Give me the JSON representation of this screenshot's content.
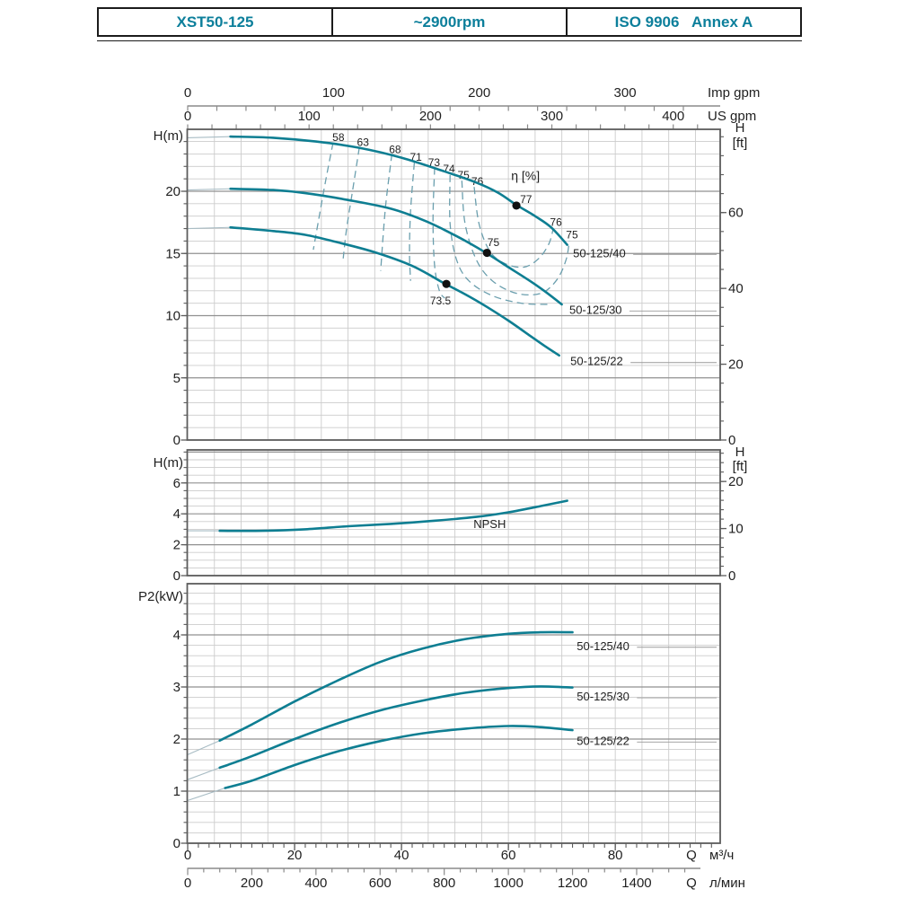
{
  "header": {
    "model": "XST50-125",
    "speed": "~2900rpm",
    "standard": "ISO 9906   Annex A"
  },
  "colors": {
    "header_text": "#0c7f9b",
    "curve": "#0e7e92",
    "curve_faint": "#a8bcc4",
    "contour": "#6b9fae",
    "dot": "#111111",
    "text": "#1f1f1f",
    "grid_minor": "#cccccc",
    "grid_major": "#909090",
    "frame": "#5c5c5c",
    "axis": "#8a8a8a",
    "leader": "#9a9a9a"
  },
  "x_axes": {
    "imp": {
      "unit": "Imp gpm",
      "ticks": [
        0,
        100,
        200,
        300
      ]
    },
    "us": {
      "unit": "US gpm",
      "ticks": [
        0,
        100,
        200,
        300,
        400
      ]
    },
    "m3h": {
      "q": "Q",
      "unit": "м³/ч",
      "ticks": [
        0,
        20,
        40,
        60,
        80
      ]
    },
    "lmin": {
      "q": "Q",
      "unit": "л/мин",
      "ticks": [
        0,
        200,
        400,
        600,
        800,
        1000,
        1200,
        1400
      ]
    }
  },
  "chart_data": [
    {
      "type": "line",
      "name": "head-flow-curves",
      "ylabel": "H(m)",
      "ylabel_right": [
        "H",
        "[ft]"
      ],
      "xlabel": "Q (м³/ч)",
      "xlim": [
        0,
        99.6
      ],
      "ylim": [
        0,
        25
      ],
      "yticks": [
        0,
        5,
        10,
        15,
        20
      ],
      "yticks_right_ft": [
        0,
        20,
        40,
        60
      ],
      "grid": true,
      "series": [
        {
          "name": "50-125/40",
          "label": "50-125/40",
          "label_pos": [
            72.1,
            15.0
          ],
          "points": [
            [
              0,
              24.3
            ],
            [
              8,
              24.4
            ],
            [
              16,
              24.3
            ],
            [
              24,
              24.0
            ],
            [
              32,
              23.5
            ],
            [
              40,
              22.7
            ],
            [
              48,
              21.6
            ],
            [
              54,
              20.7
            ],
            [
              58,
              19.9
            ],
            [
              61.5,
              18.9
            ],
            [
              65,
              18.0
            ],
            [
              68,
              17.1
            ],
            [
              71,
              15.7
            ]
          ]
        },
        {
          "name": "50-125/30",
          "label": "50-125/30",
          "label_pos": [
            71.4,
            10.45
          ],
          "points": [
            [
              0,
              20.1
            ],
            [
              8,
              20.2
            ],
            [
              16,
              20.1
            ],
            [
              22,
              19.85
            ],
            [
              30,
              19.3
            ],
            [
              38,
              18.6
            ],
            [
              44,
              17.7
            ],
            [
              48,
              16.9
            ],
            [
              52,
              16.0
            ],
            [
              56,
              15.0
            ],
            [
              60,
              13.9
            ],
            [
              64,
              12.8
            ],
            [
              67,
              11.9
            ],
            [
              70,
              10.9
            ]
          ]
        },
        {
          "name": "50-125/22",
          "label": "50-125/22",
          "label_pos": [
            71.6,
            6.3
          ],
          "points": [
            [
              0,
              17.0
            ],
            [
              8,
              17.1
            ],
            [
              16,
              16.8
            ],
            [
              22,
              16.5
            ],
            [
              28,
              15.9
            ],
            [
              35,
              15.1
            ],
            [
              42,
              14.0
            ],
            [
              48,
              12.6
            ],
            [
              52,
              11.7
            ],
            [
              56,
              10.7
            ],
            [
              60,
              9.6
            ],
            [
              64,
              8.4
            ],
            [
              67,
              7.5
            ],
            [
              69.5,
              6.8
            ]
          ]
        }
      ],
      "efficiency": {
        "legend": "η [%]",
        "legend_pos": [
          63.2,
          21.2
        ],
        "contours": [
          {
            "label": "58",
            "label_pos": [
              28.2,
              24.35
            ],
            "points": [
              [
                27.2,
                23.9
              ],
              [
                25.7,
                20.6
              ],
              [
                24.5,
                17.7
              ],
              [
                23.5,
                15.3
              ]
            ]
          },
          {
            "label": "63",
            "label_pos": [
              32.8,
              23.95
            ],
            "points": [
              [
                32.1,
                23.5
              ],
              [
                30.8,
                19.9
              ],
              [
                29.7,
                16.9
              ],
              [
                29.1,
                14.6
              ]
            ]
          },
          {
            "label": "68",
            "label_pos": [
              38.8,
              23.35
            ],
            "points": [
              [
                38.2,
                23.0
              ],
              [
                37.1,
                19.1
              ],
              [
                36.5,
                16.0
              ],
              [
                36.1,
                13.6
              ]
            ]
          },
          {
            "label": "71",
            "label_pos": [
              42.7,
              22.75
            ],
            "points": [
              [
                42.4,
                22.3
              ],
              [
                41.7,
                18.4
              ],
              [
                41.5,
                15.1
              ],
              [
                41.7,
                12.8
              ]
            ]
          },
          {
            "label": "73",
            "label_pos": [
              46.1,
              22.3
            ],
            "points": [
              [
                46.2,
                21.9
              ],
              [
                45.9,
                17.7
              ],
              [
                46.2,
                14.0
              ],
              [
                47.1,
                12.0
              ],
              [
                48.1,
                11.4
              ]
            ]
          },
          {
            "label": "74",
            "label_pos": [
              48.9,
              21.8
            ],
            "points": [
              [
                49.1,
                21.3
              ],
              [
                49.1,
                17.4
              ],
              [
                50.3,
                14.5
              ],
              [
                52.6,
                12.8
              ],
              [
                57.0,
                11.6
              ],
              [
                62.4,
                11.0
              ],
              [
                67.7,
                10.9
              ]
            ]
          },
          {
            "label": "75",
            "label_pos": [
              51.6,
              21.3
            ],
            "points": [
              [
                51.3,
                20.85
              ],
              [
                51.9,
                17.4
              ],
              [
                54.0,
                14.5
              ],
              [
                57.0,
                12.8
              ],
              [
                61.5,
                11.8
              ],
              [
                66.1,
                11.8
              ],
              [
                69.1,
                12.9
              ],
              [
                70.8,
                14.5
              ],
              [
                71.4,
                16.0
              ]
            ]
          },
          {
            "label": "76",
            "label_pos": [
              54.2,
              20.8
            ],
            "points": [
              [
                53.6,
                20.35
              ],
              [
                54.5,
                17.4
              ],
              [
                56.5,
                15.2
              ],
              [
                59.3,
                14.2
              ],
              [
                62.9,
                13.9
              ],
              [
                65.7,
                14.6
              ],
              [
                67.6,
                15.8
              ],
              [
                68.4,
                17.0
              ]
            ]
          }
        ],
        "end_labels": [
          {
            "text": "76",
            "pos": [
              68.9,
              17.5
            ]
          },
          {
            "text": "75",
            "pos": [
              71.9,
              16.5
            ]
          }
        ],
        "best_points": [
          {
            "label": "77",
            "pos": [
              61.5,
              18.85
            ],
            "label_pos": [
              63.3,
              19.35
            ]
          },
          {
            "label": "75",
            "pos": [
              56.0,
              15.05
            ],
            "label_pos": [
              57.2,
              15.9
            ]
          },
          {
            "label": "73.5",
            "pos": [
              48.4,
              12.55
            ],
            "label_pos": [
              47.3,
              11.2
            ]
          }
        ]
      }
    },
    {
      "type": "line",
      "name": "npsh-curve",
      "ylabel": "H(m)",
      "ylabel_right": [
        "H",
        "[ft]"
      ],
      "xlim": [
        0,
        99.6
      ],
      "ylim": [
        0,
        8
      ],
      "yticks": [
        0,
        2,
        4,
        6
      ],
      "yticks_right_ft": [
        0,
        10,
        20
      ],
      "grid": true,
      "series": [
        {
          "name": "NPSH",
          "label": "NPSH",
          "label_pos": [
            56.5,
            3.3
          ],
          "label_anchor": "middle",
          "no_leader": true,
          "points": [
            [
              0,
              2.9
            ],
            [
              6,
              2.9
            ],
            [
              14,
              2.9
            ],
            [
              22,
              3.0
            ],
            [
              30,
              3.2
            ],
            [
              38,
              3.35
            ],
            [
              46,
              3.55
            ],
            [
              54,
              3.8
            ],
            [
              60,
              4.1
            ],
            [
              66,
              4.5
            ],
            [
              71,
              4.85
            ]
          ]
        }
      ]
    },
    {
      "type": "line",
      "name": "power-curves",
      "ylabel": "P2(kW)",
      "xlim": [
        0,
        99.6
      ],
      "ylim": [
        0,
        5
      ],
      "yticks": [
        0,
        1,
        2,
        3,
        4
      ],
      "grid": true,
      "series": [
        {
          "name": "50-125/40",
          "label": "50-125/40",
          "label_pos": [
            72.8,
            3.78
          ],
          "points": [
            [
              0,
              1.7
            ],
            [
              6,
              1.97
            ],
            [
              12,
              2.28
            ],
            [
              20,
              2.72
            ],
            [
              28,
              3.12
            ],
            [
              36,
              3.48
            ],
            [
              44,
              3.74
            ],
            [
              52,
              3.92
            ],
            [
              60,
              4.02
            ],
            [
              66,
              4.05
            ],
            [
              72,
              4.05
            ]
          ]
        },
        {
          "name": "50-125/30",
          "label": "50-125/30",
          "label_pos": [
            72.8,
            2.81
          ],
          "points": [
            [
              0,
              1.22
            ],
            [
              6,
              1.45
            ],
            [
              12,
              1.67
            ],
            [
              20,
              2.0
            ],
            [
              28,
              2.3
            ],
            [
              36,
              2.55
            ],
            [
              44,
              2.74
            ],
            [
              52,
              2.89
            ],
            [
              60,
              2.98
            ],
            [
              66,
              3.01
            ],
            [
              72,
              2.99
            ]
          ]
        },
        {
          "name": "50-125/22",
          "label": "50-125/22",
          "label_pos": [
            72.8,
            1.96
          ],
          "points": [
            [
              0,
              0.82
            ],
            [
              7,
              1.06
            ],
            [
              12,
              1.2
            ],
            [
              20,
              1.5
            ],
            [
              28,
              1.76
            ],
            [
              36,
              1.96
            ],
            [
              44,
              2.11
            ],
            [
              52,
              2.2
            ],
            [
              60,
              2.25
            ],
            [
              66,
              2.23
            ],
            [
              72,
              2.17
            ]
          ]
        }
      ]
    }
  ]
}
